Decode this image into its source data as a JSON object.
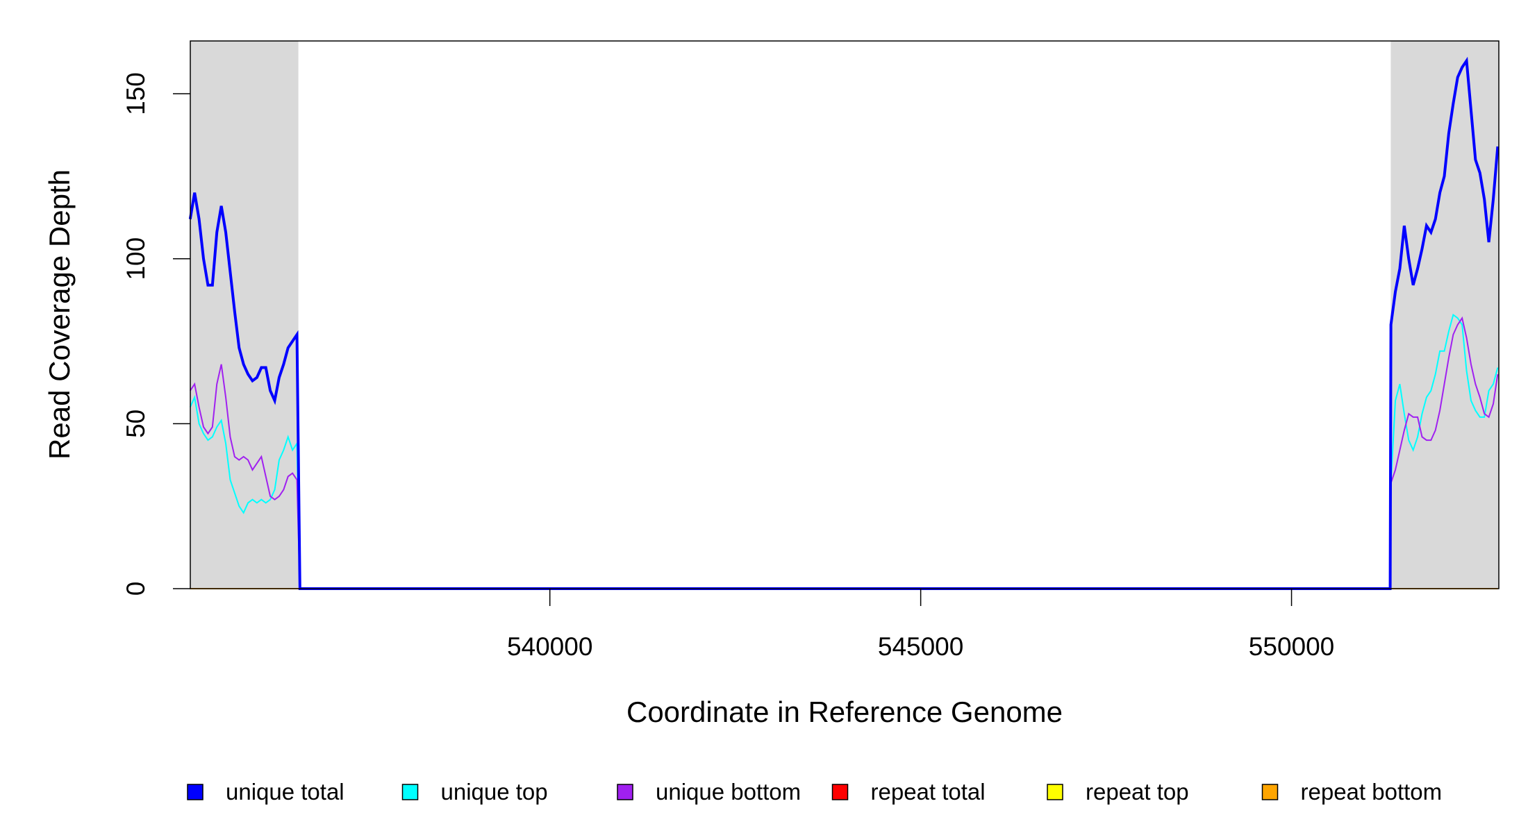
{
  "chart_data": {
    "type": "line",
    "x_label": "Coordinate in Reference Genome",
    "y_label": "Read Coverage Depth",
    "xlim": [
      535152,
      552795
    ],
    "ylim": [
      0,
      166
    ],
    "xticks": [
      540000,
      545000,
      550000
    ],
    "yticks": [
      0,
      50,
      100,
      150
    ],
    "shaded_regions": [
      [
        535152,
        536609
      ],
      [
        551338,
        552795
      ]
    ],
    "shade_color": "#d9d9d9",
    "x": [
      535150,
      535210,
      535270,
      535330,
      535390,
      535450,
      535510,
      535570,
      535630,
      535690,
      535750,
      535810,
      535870,
      535930,
      535990,
      536050,
      536110,
      536170,
      536230,
      536290,
      536350,
      536410,
      536470,
      536530,
      536590,
      536630,
      551330,
      551340,
      551400,
      551460,
      551520,
      551580,
      551640,
      551700,
      551760,
      551820,
      551880,
      551940,
      552000,
      552060,
      552120,
      552180,
      552240,
      552300,
      552360,
      552420,
      552480,
      552540,
      552600,
      552660,
      552720,
      552780
    ],
    "series": [
      {
        "name": "repeat total",
        "color": "#ff0000",
        "width": 2,
        "values": [
          0,
          0,
          0,
          0,
          0,
          0,
          0,
          0,
          0,
          0,
          0,
          0,
          0,
          0,
          0,
          0,
          0,
          0,
          0,
          0,
          0,
          0,
          0,
          0,
          0,
          0,
          0,
          0,
          0,
          0,
          0,
          0,
          0,
          0,
          0,
          0,
          0,
          0,
          0,
          0,
          0,
          0,
          0,
          0,
          0,
          0,
          0,
          0,
          0,
          0,
          0,
          0
        ]
      },
      {
        "name": "repeat top",
        "color": "#ffff00",
        "width": 2,
        "values": [
          0,
          0,
          0,
          0,
          0,
          0,
          0,
          0,
          0,
          0,
          0,
          0,
          0,
          0,
          0,
          0,
          0,
          0,
          0,
          0,
          0,
          0,
          0,
          0,
          0,
          0,
          0,
          0,
          0,
          0,
          0,
          0,
          0,
          0,
          0,
          0,
          0,
          0,
          0,
          0,
          0,
          0,
          0,
          0,
          0,
          0,
          0,
          0,
          0,
          0,
          0,
          0
        ]
      },
      {
        "name": "repeat bottom",
        "color": "#ffa500",
        "width": 2,
        "values": [
          0,
          0,
          0,
          0,
          0,
          0,
          0,
          0,
          0,
          0,
          0,
          0,
          0,
          0,
          0,
          0,
          0,
          0,
          0,
          0,
          0,
          0,
          0,
          0,
          0,
          0,
          0,
          0,
          0,
          0,
          0,
          0,
          0,
          0,
          0,
          0,
          0,
          0,
          0,
          0,
          0,
          0,
          0,
          0,
          0,
          0,
          0,
          0,
          0,
          0,
          0,
          0
        ]
      },
      {
        "name": "unique top",
        "color": "#00ffff",
        "width": 2,
        "values": [
          55,
          58,
          50,
          47,
          45,
          46,
          49,
          51,
          44,
          33,
          29,
          25,
          23,
          26,
          27,
          26,
          27,
          26,
          27,
          30,
          39,
          42,
          46,
          42,
          44,
          0,
          0,
          32,
          57,
          62,
          53,
          45,
          42,
          46,
          53,
          58,
          60,
          65,
          72,
          72,
          78,
          83,
          82,
          80,
          66,
          57,
          54,
          52,
          52,
          60,
          62,
          67
        ]
      },
      {
        "name": "unique bottom",
        "color": "#a020f0",
        "width": 2,
        "values": [
          60,
          62,
          55,
          49,
          47,
          49,
          62,
          68,
          58,
          46,
          40,
          39,
          40,
          39,
          36,
          38,
          40,
          34,
          28,
          27,
          28,
          30,
          34,
          35,
          33,
          0,
          0,
          32,
          36,
          42,
          48,
          53,
          52,
          52,
          46,
          45,
          45,
          48,
          54,
          62,
          70,
          77,
          80,
          82,
          76,
          68,
          62,
          58,
          53,
          52,
          56,
          65
        ]
      },
      {
        "name": "unique total",
        "color": "#0000ff",
        "width": 4,
        "values": [
          112,
          120,
          112,
          100,
          92,
          92,
          108,
          116,
          108,
          96,
          84,
          73,
          68,
          65,
          63,
          64,
          67,
          67,
          60,
          57,
          64,
          68,
          73,
          75,
          77,
          0,
          0,
          80,
          90,
          97,
          110,
          100,
          92,
          97,
          103,
          110,
          108,
          112,
          120,
          125,
          138,
          147,
          155,
          158,
          160,
          145,
          130,
          126,
          118,
          105,
          118,
          134
        ]
      }
    ],
    "legend_order": [
      5,
      3,
      4,
      0,
      1,
      2
    ]
  }
}
